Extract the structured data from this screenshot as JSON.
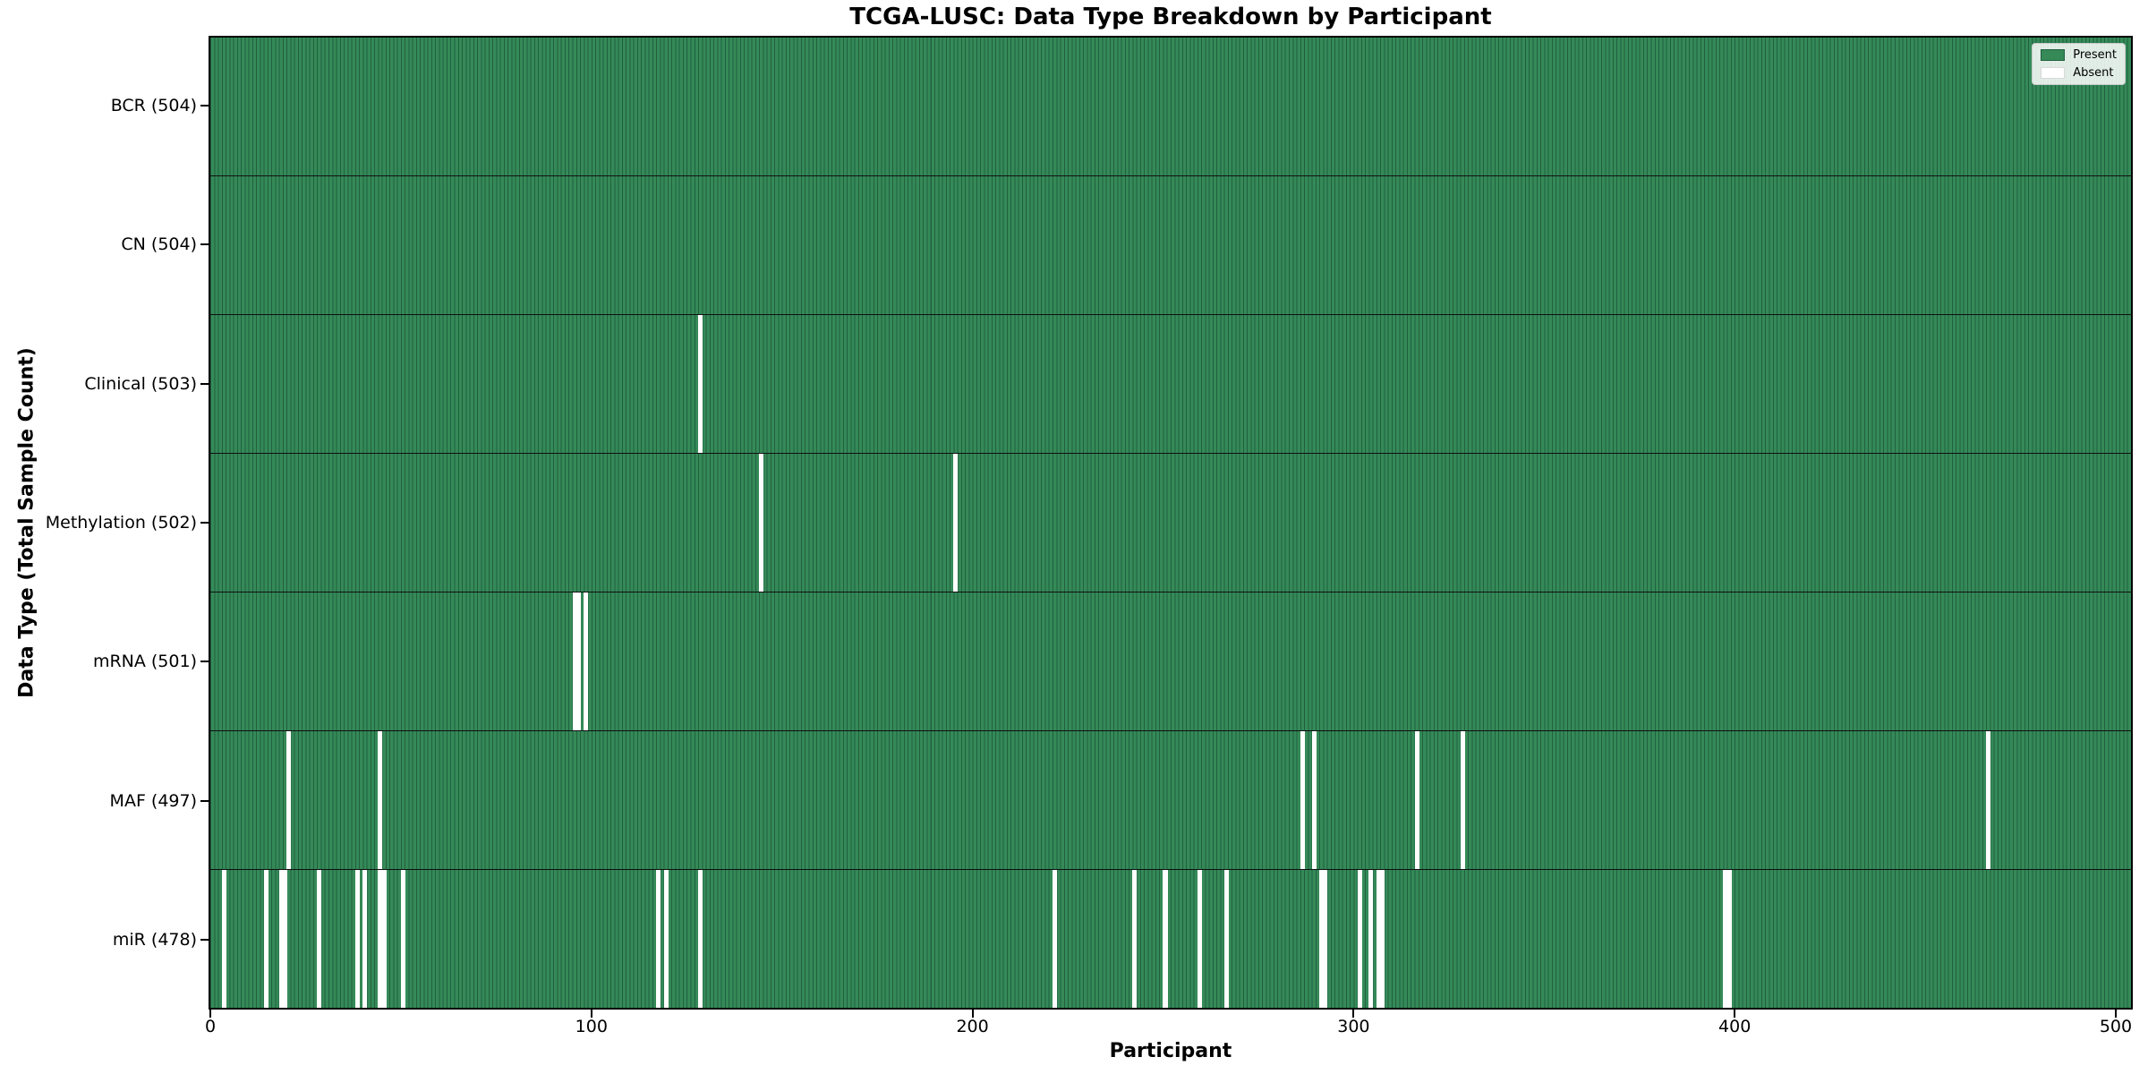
{
  "chart_data": {
    "type": "heatmap",
    "title": "TCGA-LUSC: Data Type Breakdown by Participant",
    "xlabel": "Participant",
    "ylabel": "Data Type (Total Sample Count)",
    "x_ticks": [
      0,
      100,
      200,
      300,
      400,
      500
    ],
    "x_max": 504,
    "total_participants": 504,
    "grid": false,
    "legend_position": "upper right",
    "legend": [
      {
        "label": "Present",
        "color": "#358a58"
      },
      {
        "label": "Absent",
        "color": "#ffffff"
      }
    ],
    "colors": {
      "present_fill": "#358a58",
      "present_edge": "#20603f",
      "absent_fill": "#ffffff",
      "row_divider": "#101010"
    },
    "rows": [
      {
        "label": "BCR (504)",
        "name": "BCR",
        "total": 504,
        "absent": []
      },
      {
        "label": "CN (504)",
        "name": "CN",
        "total": 504,
        "absent": []
      },
      {
        "label": "Clinical (503)",
        "name": "Clinical",
        "total": 503,
        "absent": [
          128
        ]
      },
      {
        "label": "Methylation (502)",
        "name": "Methylation",
        "total": 502,
        "absent": [
          144,
          195
        ]
      },
      {
        "label": "mRNA (501)",
        "name": "mRNA",
        "total": 501,
        "absent": [
          95,
          96,
          98
        ]
      },
      {
        "label": "MAF (497)",
        "name": "MAF",
        "total": 497,
        "absent": [
          20,
          44,
          286,
          289,
          316,
          328,
          466
        ]
      },
      {
        "label": "miR (478)",
        "name": "miR",
        "total": 478,
        "absent": [
          3,
          14,
          18,
          19,
          28,
          38,
          40,
          44,
          45,
          50,
          117,
          119,
          128,
          221,
          242,
          250,
          259,
          266,
          291,
          292,
          301,
          304,
          306,
          307,
          397,
          398
        ]
      }
    ]
  }
}
